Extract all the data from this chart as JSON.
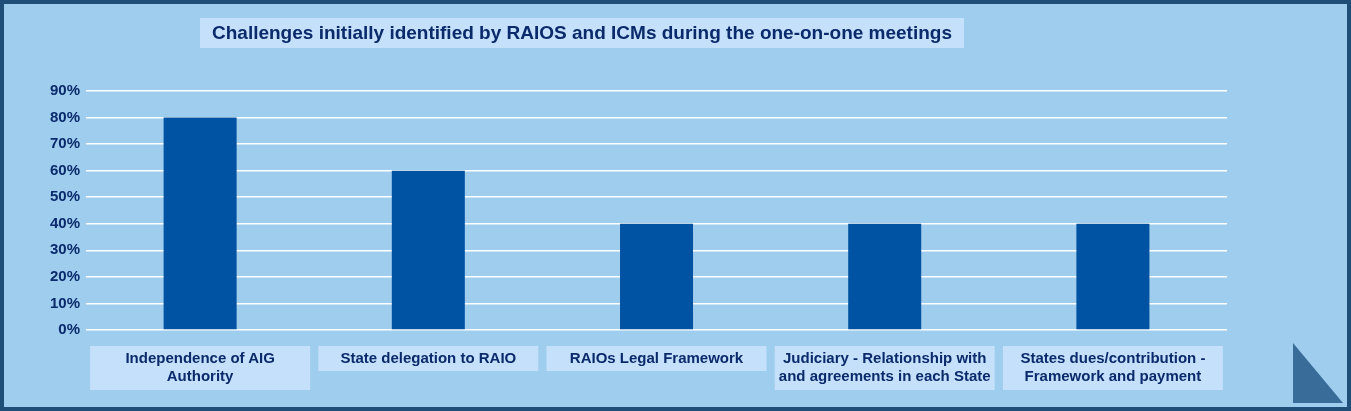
{
  "chart_data": {
    "type": "bar",
    "title": "Challenges initially identified by RAIOS and ICMs during the one-on-one meetings",
    "categories": [
      "Independence of AIG Authority",
      "State delegation to RAIO",
      "RAIOs Legal Framework",
      "Judiciary - Relationship with and agreements in each State",
      "States dues/contribution - Framework and payment"
    ],
    "values": [
      80,
      60,
      40,
      40,
      40
    ],
    "color": "#0052a3",
    "ylim": [
      0,
      90
    ],
    "yticks": [
      {
        "value": 0,
        "label": "0%"
      },
      {
        "value": 10,
        "label": "10%"
      },
      {
        "value": 20,
        "label": "20%"
      },
      {
        "value": 30,
        "label": "30%"
      },
      {
        "value": 40,
        "label": "40%"
      },
      {
        "value": 50,
        "label": "50%"
      },
      {
        "value": 60,
        "label": "60%"
      },
      {
        "value": 70,
        "label": "70%"
      },
      {
        "value": 80,
        "label": "80%"
      },
      {
        "value": 90,
        "label": "90%"
      }
    ],
    "grid": "y",
    "legend": false
  }
}
